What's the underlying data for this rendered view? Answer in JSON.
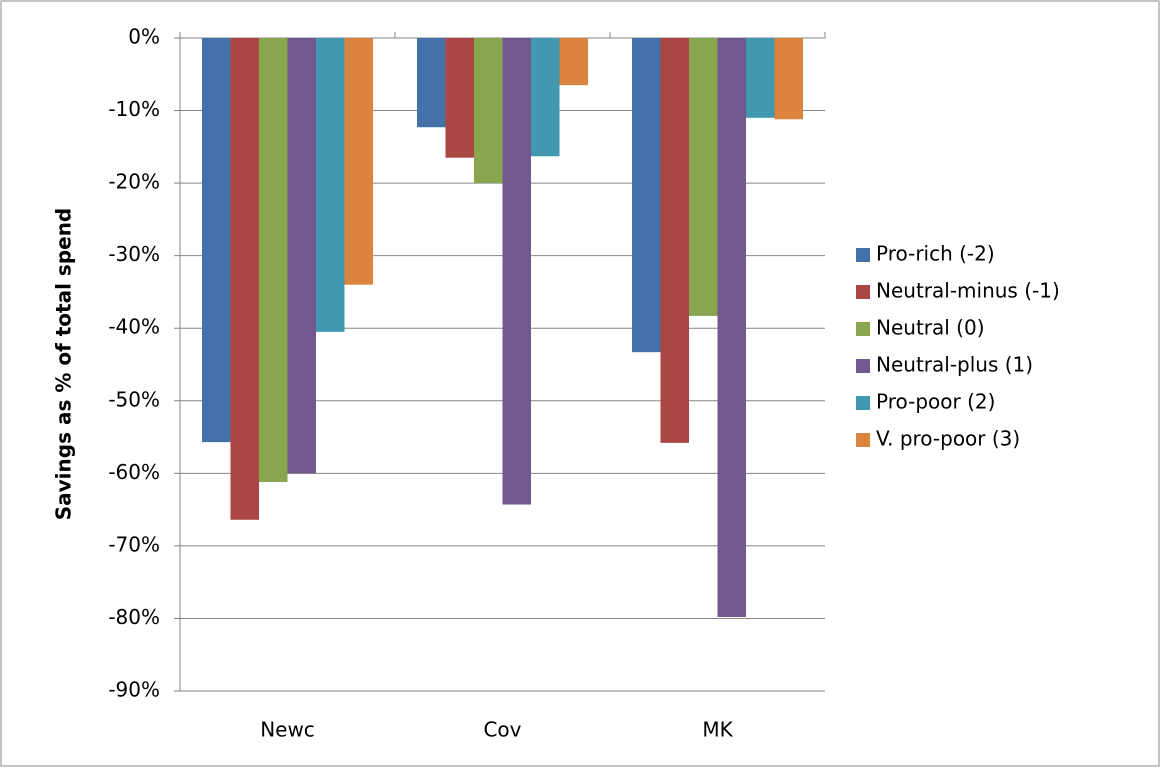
{
  "chart_data": {
    "type": "bar",
    "y_label": "Savings  as % of total spend",
    "categories": [
      "Newc",
      "Cov",
      "MK"
    ],
    "series": [
      {
        "name": "Pro-rich (-2)",
        "color": "#4472a8",
        "values": [
          -55.7,
          -12.3,
          -43.3
        ]
      },
      {
        "name": "Neutral-minus (-1)",
        "color": "#aa4643",
        "values": [
          -66.4,
          -16.5,
          -55.8
        ]
      },
      {
        "name": "Neutral (0)",
        "color": "#89a54e",
        "values": [
          -61.2,
          -20,
          -38.3
        ]
      },
      {
        "name": "Neutral-plus (1)",
        "color": "#71588f",
        "values": [
          -60,
          -64.3,
          -79.8
        ]
      },
      {
        "name": "Pro-poor (2)",
        "color": "#4198af",
        "values": [
          -40.5,
          -16.3,
          -11
        ]
      },
      {
        "name": "V. pro-poor (3)",
        "color": "#db843d",
        "values": [
          -34,
          -6.5,
          -11.2
        ]
      }
    ],
    "ylim": [
      -90,
      0
    ],
    "yticks": [
      {
        "value": 0,
        "label": "0%"
      },
      {
        "value": -10,
        "label": "-10%"
      },
      {
        "value": -20,
        "label": "-20%"
      },
      {
        "value": -30,
        "label": "-30%"
      },
      {
        "value": -40,
        "label": "-40%"
      },
      {
        "value": -50,
        "label": "-50%"
      },
      {
        "value": -60,
        "label": "-60%"
      },
      {
        "value": -70,
        "label": "-70%"
      },
      {
        "value": -80,
        "label": "-80%"
      },
      {
        "value": -90,
        "label": "-90%"
      }
    ],
    "grid": true,
    "legend": "right"
  }
}
